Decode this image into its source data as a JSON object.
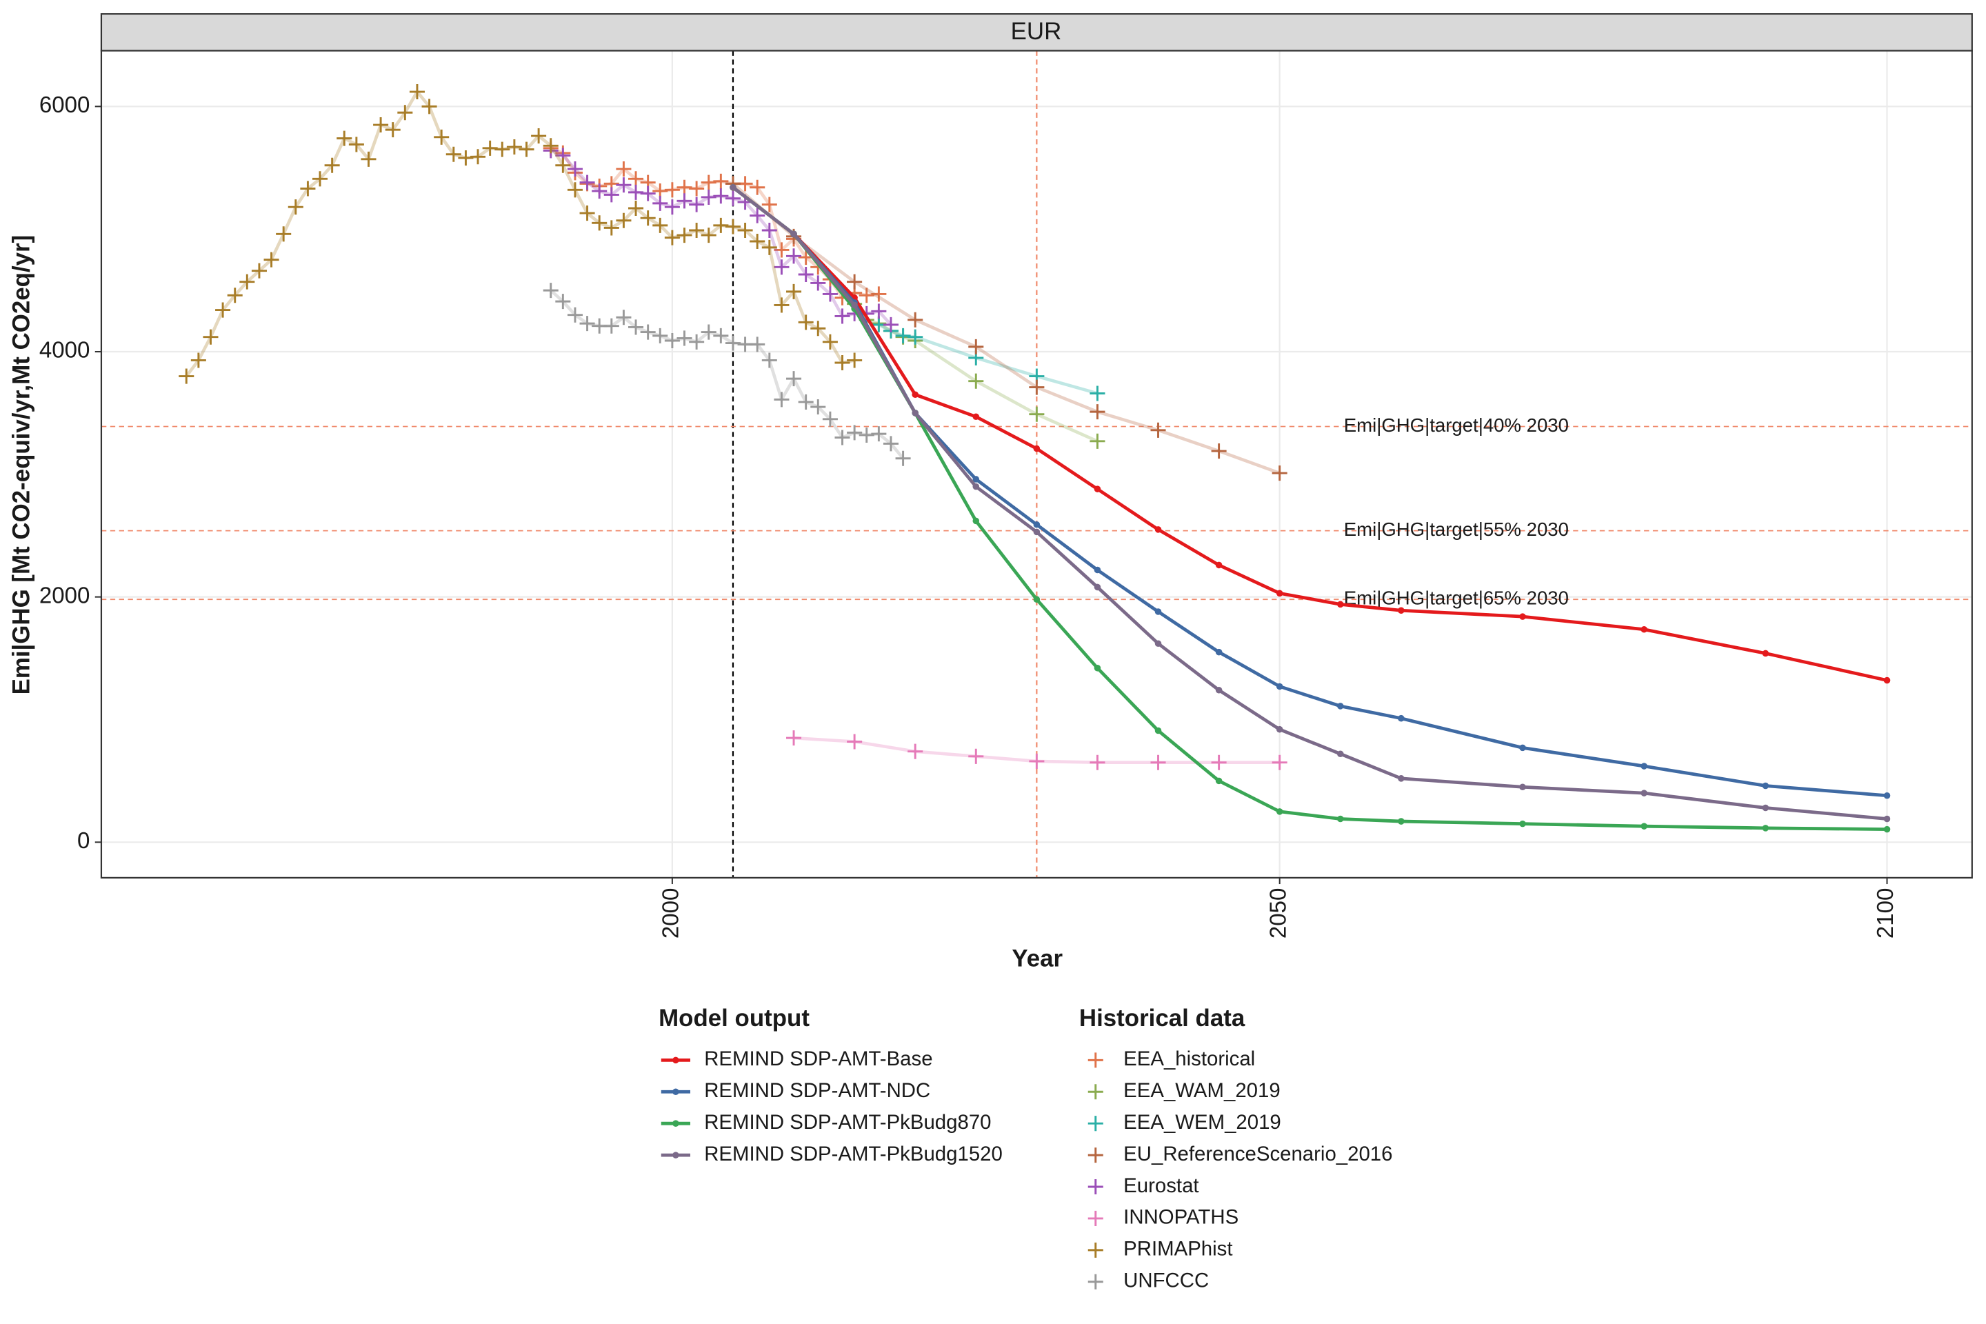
{
  "chart_data": {
    "type": "line",
    "title": "EUR",
    "x_label": "Year",
    "y_label": "Emi|GHG [Mt CO2-equiv/yr,Mt CO2eq/yr]",
    "xlim": [
      1953,
      2107
    ],
    "ylim": [
      -290,
      6455
    ],
    "xticks": [
      2000,
      2050,
      2100
    ],
    "yticks": [
      0,
      2000,
      4000,
      6000
    ],
    "grid": true,
    "vlines": [
      {
        "x": 2005,
        "color": "#000000"
      },
      {
        "x": 2030,
        "color": "#f08a6c"
      }
    ],
    "hlines": [
      {
        "y": 3390,
        "label": "Emi|GHG|target|40% 2030",
        "color": "#f08a6c"
      },
      {
        "y": 2540,
        "label": "Emi|GHG|target|55% 2030",
        "color": "#f08a6c"
      },
      {
        "y": 1980,
        "label": "Emi|GHG|target|65% 2030",
        "color": "#f08a6c"
      }
    ],
    "series_groups": [
      {
        "title": "Model output",
        "style": "line",
        "series": [
          {
            "name": "REMIND SDP-AMT-Base",
            "color": "#e41a1c",
            "x": [
              2005,
              2010,
              2015,
              2020,
              2025,
              2030,
              2035,
              2040,
              2045,
              2050,
              2055,
              2060,
              2070,
              2080,
              2090,
              2100
            ],
            "values": [
              5340,
              4960,
              4440,
              3650,
              3470,
              3210,
              2880,
              2550,
              2260,
              2030,
              1940,
              1890,
              1840,
              1735,
              1540,
              1320
            ]
          },
          {
            "name": "REMIND SDP-AMT-NDC",
            "color": "#3f6aa3",
            "x": [
              2005,
              2010,
              2015,
              2020,
              2025,
              2030,
              2035,
              2040,
              2045,
              2050,
              2055,
              2060,
              2070,
              2080,
              2090,
              2100
            ],
            "values": [
              5340,
              4960,
              4400,
              3500,
              2960,
              2590,
              2220,
              1880,
              1550,
              1270,
              1110,
              1010,
              770,
              620,
              460,
              380
            ]
          },
          {
            "name": "REMIND SDP-AMT-PkBudg870",
            "color": "#3aa655",
            "x": [
              2005,
              2010,
              2015,
              2020,
              2025,
              2030,
              2035,
              2040,
              2045,
              2050,
              2055,
              2060,
              2070,
              2080,
              2090,
              2100
            ],
            "values": [
              5340,
              4960,
              4350,
              3500,
              2620,
              1980,
              1420,
              910,
              500,
              250,
              190,
              170,
              150,
              130,
              115,
              105
            ]
          },
          {
            "name": "REMIND SDP-AMT-PkBudg1520",
            "color": "#7b6a89",
            "x": [
              2005,
              2010,
              2015,
              2020,
              2025,
              2030,
              2035,
              2040,
              2045,
              2050,
              2055,
              2060,
              2070,
              2080,
              2090,
              2100
            ],
            "values": [
              5340,
              4960,
              4380,
              3500,
              2900,
              2530,
              2080,
              1620,
              1240,
              920,
              720,
              520,
              450,
              400,
              280,
              190
            ]
          }
        ]
      },
      {
        "title": "Historical data",
        "style": "plus",
        "series": [
          {
            "name": "EEA_historical",
            "color": "#e0734a",
            "x": [
              1990,
              1991,
              1992,
              1993,
              1994,
              1995,
              1996,
              1997,
              1998,
              1999,
              2000,
              2001,
              2002,
              2003,
              2004,
              2005,
              2006,
              2007,
              2008,
              2009,
              2010,
              2011,
              2012,
              2013,
              2014,
              2015,
              2016,
              2017
            ],
            "values": [
              5660,
              5620,
              5460,
              5370,
              5350,
              5370,
              5490,
              5410,
              5380,
              5310,
              5320,
              5340,
              5330,
              5380,
              5390,
              5370,
              5370,
              5340,
              5200,
              4830,
              4920,
              4770,
              4690,
              4590,
              4440,
              4480,
              4460,
              4470
            ]
          },
          {
            "name": "EEA_WAM_2019",
            "color": "#8aab4f",
            "x": [
              2015,
              2016,
              2017,
              2018,
              2019,
              2020,
              2025,
              2030,
              2035
            ],
            "values": [
              4390,
              4260,
              4230,
              4170,
              4120,
              4090,
              3760,
              3490,
              3270
            ]
          },
          {
            "name": "EEA_WEM_2019",
            "color": "#2aafa6",
            "x": [
              2017,
              2018,
              2019,
              2020,
              2025,
              2030,
              2035
            ],
            "values": [
              4220,
              4170,
              4130,
              4120,
              3950,
              3800,
              3660
            ]
          },
          {
            "name": "EU_ReferenceScenario_2016",
            "color": "#b5653f",
            "x": [
              2005,
              2010,
              2015,
              2020,
              2025,
              2030,
              2035,
              2040,
              2045,
              2050
            ],
            "values": [
              5370,
              4940,
              4570,
              4260,
              4040,
              3710,
              3510,
              3360,
              3190,
              3010
            ]
          },
          {
            "name": "Eurostat",
            "color": "#9b4fb8",
            "x": [
              1990,
              1991,
              1992,
              1993,
              1994,
              1995,
              1996,
              1997,
              1998,
              1999,
              2000,
              2001,
              2002,
              2003,
              2004,
              2005,
              2006,
              2007,
              2008,
              2009,
              2010,
              2011,
              2012,
              2013,
              2014,
              2015,
              2016,
              2017,
              2018
            ],
            "values": [
              5640,
              5600,
              5490,
              5380,
              5310,
              5280,
              5360,
              5300,
              5290,
              5210,
              5180,
              5230,
              5200,
              5260,
              5270,
              5250,
              5220,
              5110,
              4990,
              4690,
              4780,
              4630,
              4560,
              4470,
              4290,
              4310,
              4310,
              4330,
              4220
            ]
          },
          {
            "name": "INNOPATHS",
            "color": "#e57ab8",
            "x": [
              2010,
              2015,
              2020,
              2025,
              2030,
              2035,
              2040,
              2045,
              2050
            ],
            "values": [
              850,
              820,
              740,
              700,
              660,
              650,
              650,
              650,
              650
            ]
          },
          {
            "name": "PRIMAPhist",
            "color": "#a87d28",
            "x": [
              1960,
              1961,
              1962,
              1963,
              1964,
              1965,
              1966,
              1967,
              1968,
              1969,
              1970,
              1971,
              1972,
              1973,
              1974,
              1975,
              1976,
              1977,
              1978,
              1979,
              1980,
              1981,
              1982,
              1983,
              1984,
              1985,
              1986,
              1987,
              1988,
              1989,
              1990,
              1991,
              1992,
              1993,
              1994,
              1995,
              1996,
              1997,
              1998,
              1999,
              2000,
              2001,
              2002,
              2003,
              2004,
              2005,
              2006,
              2007,
              2008,
              2009,
              2010,
              2011,
              2012,
              2013,
              2014,
              2015
            ],
            "values": [
              3800,
              3930,
              4120,
              4340,
              4460,
              4570,
              4660,
              4750,
              4960,
              5180,
              5330,
              5410,
              5520,
              5740,
              5690,
              5570,
              5850,
              5810,
              5950,
              6120,
              6000,
              5750,
              5610,
              5580,
              5590,
              5660,
              5650,
              5670,
              5650,
              5760,
              5680,
              5520,
              5320,
              5130,
              5050,
              5010,
              5070,
              5170,
              5090,
              5030,
              4930,
              4950,
              4990,
              4950,
              5030,
              5020,
              4990,
              4900,
              4850,
              4380,
              4490,
              4240,
              4190,
              4080,
              3910,
              3930
            ]
          },
          {
            "name": "UNFCCC",
            "color": "#999999",
            "x": [
              1990,
              1991,
              1992,
              1993,
              1994,
              1995,
              1996,
              1997,
              1998,
              1999,
              2000,
              2001,
              2002,
              2003,
              2004,
              2005,
              2006,
              2007,
              2008,
              2009,
              2010,
              2011,
              2012,
              2013,
              2014,
              2015,
              2016,
              2017,
              2018,
              2019
            ],
            "values": [
              4500,
              4410,
              4300,
              4230,
              4210,
              4210,
              4280,
              4200,
              4160,
              4130,
              4090,
              4110,
              4080,
              4160,
              4130,
              4070,
              4060,
              4060,
              3930,
              3610,
              3780,
              3590,
              3550,
              3450,
              3300,
              3340,
              3320,
              3330,
              3250,
              3130
            ]
          }
        ]
      }
    ]
  }
}
